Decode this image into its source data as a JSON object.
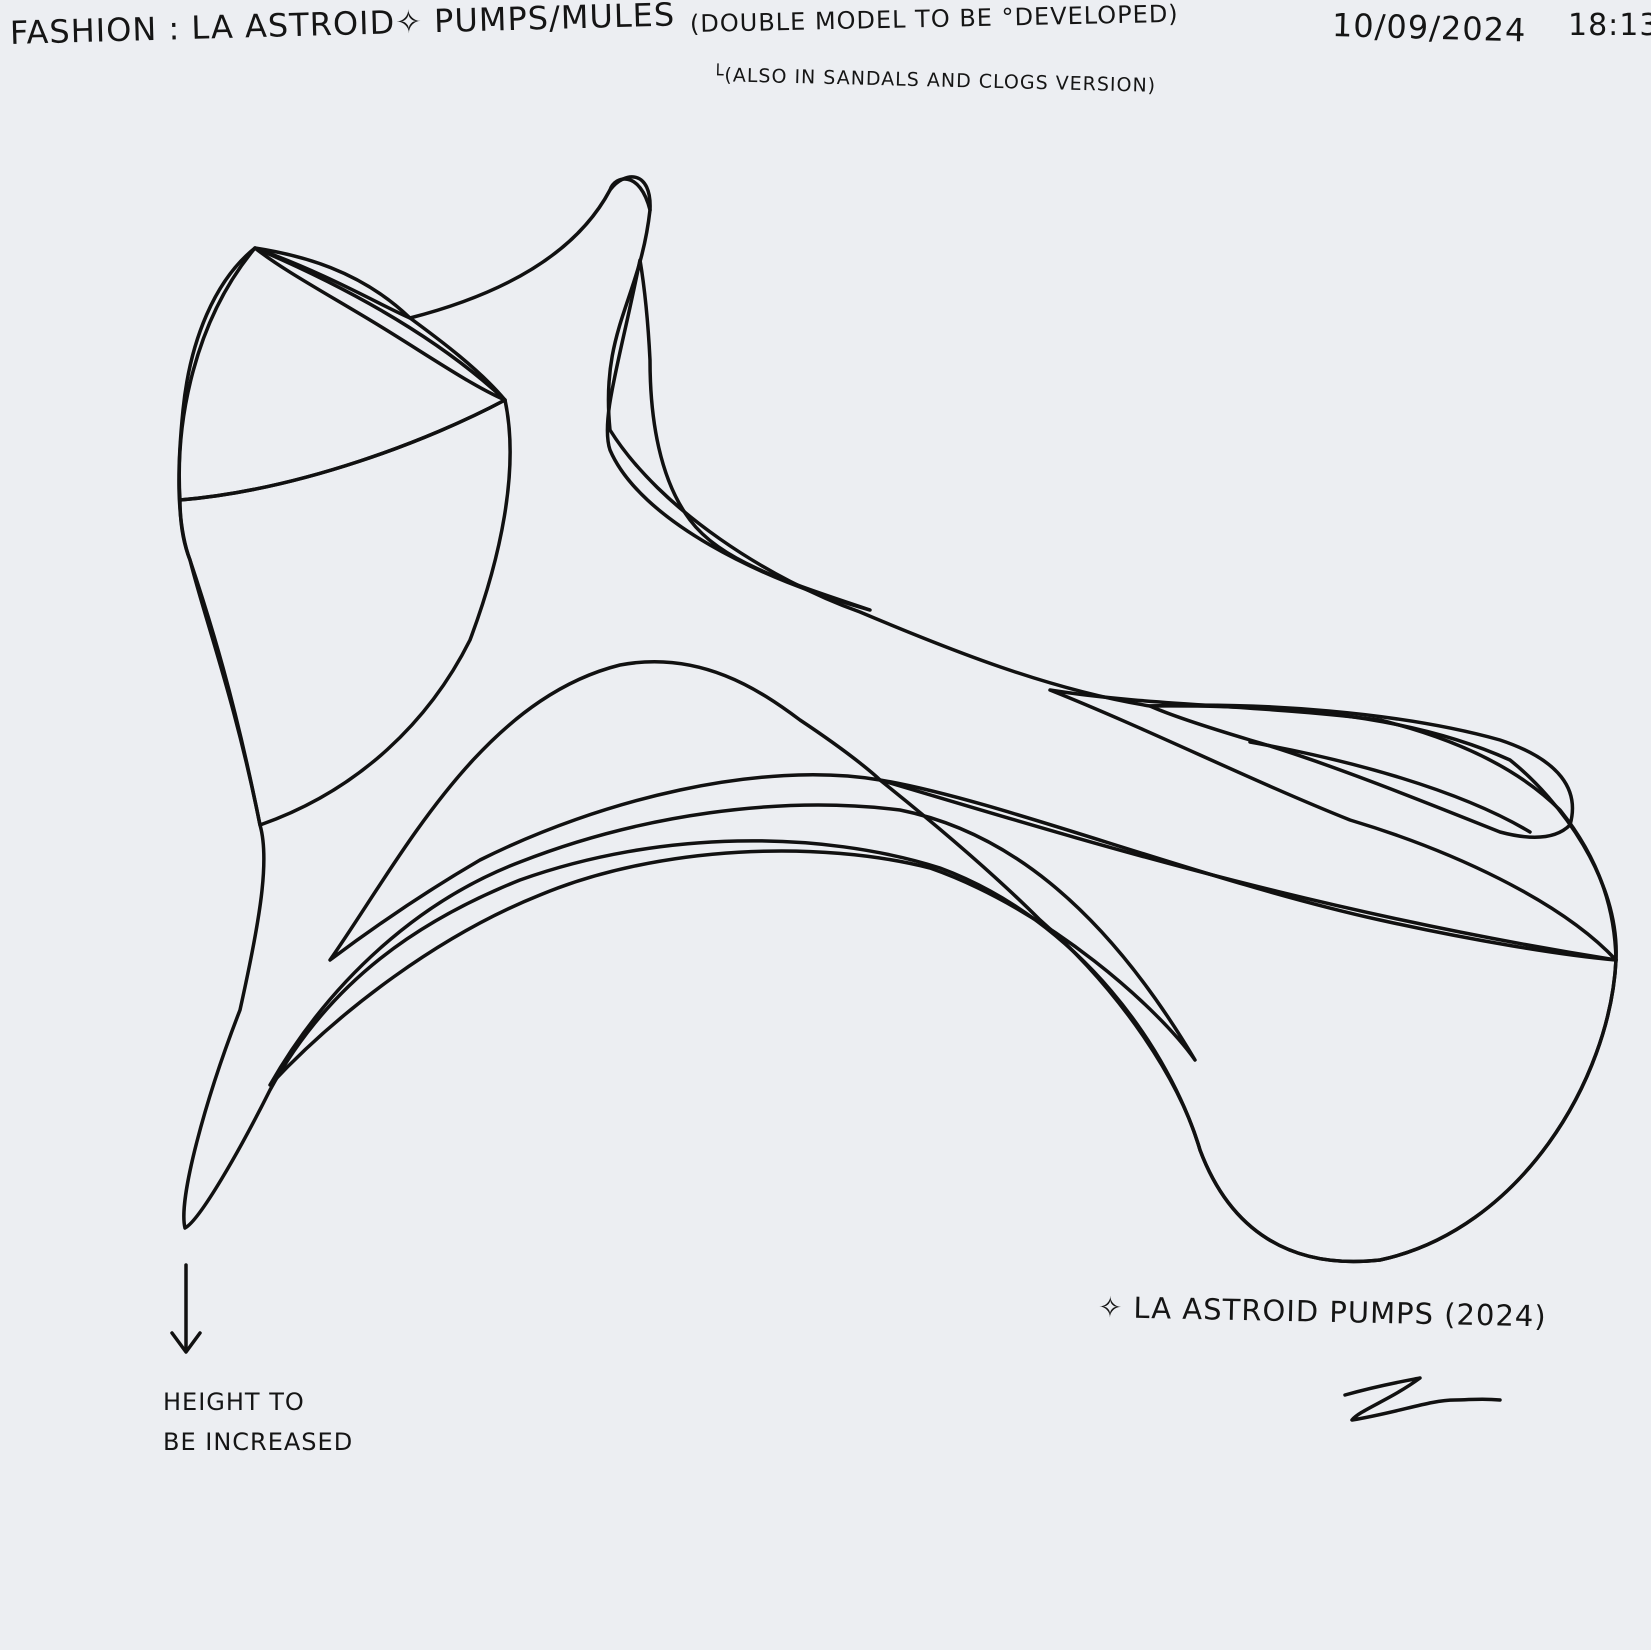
{
  "header": {
    "title": "FASHION : LA ASTROID✧ PUMPS/MULES",
    "note": "(DOUBLE MODEL TO BE °DEVELOPED)",
    "subnote": "└(ALSO IN SANDALS AND CLOGS VERSION)",
    "date": "10/09/2024",
    "time": "18:13"
  },
  "annotation": {
    "arrow_note": "HEIGHT TO\nBE INCREASED"
  },
  "caption": "✧ LA ASTROID PUMPS (2024)",
  "signature": "Zm",
  "colors": {
    "paper": "#eceef2",
    "cream": "#f1dfc7",
    "orange": "#f6902f",
    "gold": "#e3a91f",
    "royal_blue": "#0f4fc0",
    "light_blue": "#2b9de0",
    "ink": "#111111"
  },
  "icons": {
    "sparkle": "four-point-star-icon",
    "arrow": "arrow-down-icon"
  }
}
